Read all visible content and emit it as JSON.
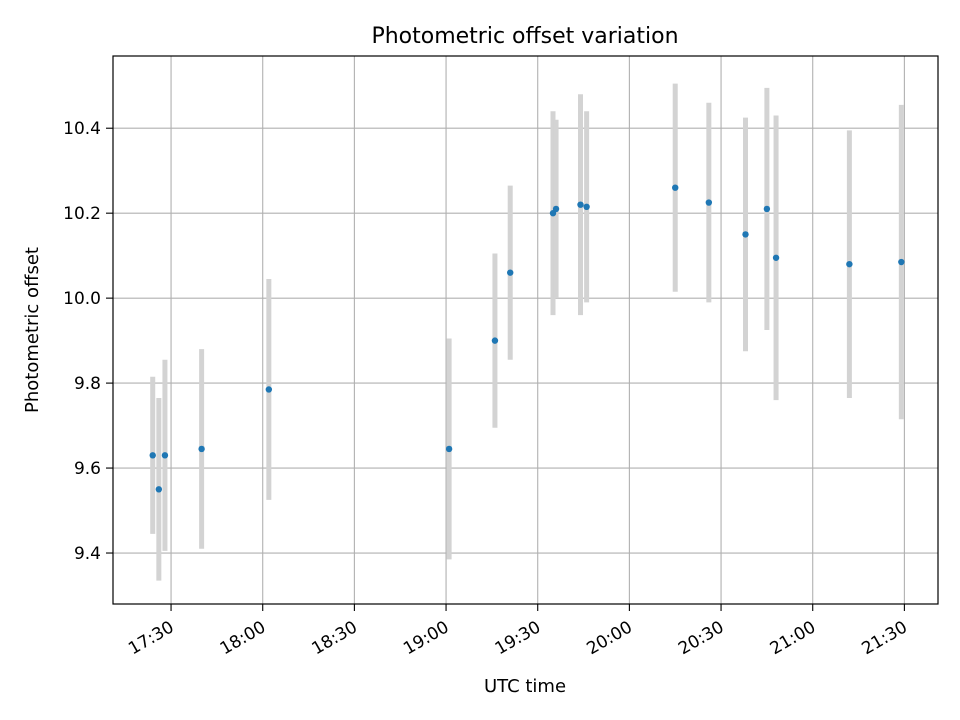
{
  "chart_data": {
    "type": "scatter",
    "title": "Photometric offset variation",
    "xlabel": "UTC time",
    "ylabel": "Photometric offset",
    "x_ticks": [
      "17:30",
      "18:00",
      "18:30",
      "19:00",
      "19:30",
      "20:00",
      "20:30",
      "21:00",
      "21:30"
    ],
    "y_ticks": [
      "9.4",
      "9.6",
      "9.8",
      "10.0",
      "10.2",
      "10.4"
    ],
    "xlim": [
      "17:11",
      "21:41"
    ],
    "ylim": [
      9.28,
      10.57
    ],
    "grid": true,
    "colors": {
      "point": "#1f77b4",
      "errorbar": "#d3d3d3",
      "grid": "#b0b0b0"
    },
    "points": [
      {
        "t": "17:24",
        "y": 9.63,
        "err": 0.185
      },
      {
        "t": "17:26",
        "y": 9.55,
        "err": 0.215
      },
      {
        "t": "17:28",
        "y": 9.63,
        "err": 0.225
      },
      {
        "t": "17:40",
        "y": 9.645,
        "err": 0.235
      },
      {
        "t": "18:02",
        "y": 9.785,
        "err": 0.26
      },
      {
        "t": "19:01",
        "y": 9.645,
        "err": 0.26
      },
      {
        "t": "19:16",
        "y": 9.9,
        "err": 0.205
      },
      {
        "t": "19:21",
        "y": 10.06,
        "err": 0.205
      },
      {
        "t": "19:35",
        "y": 10.2,
        "err": 0.24
      },
      {
        "t": "19:36",
        "y": 10.21,
        "err": 0.21
      },
      {
        "t": "19:44",
        "y": 10.22,
        "err": 0.26
      },
      {
        "t": "19:46",
        "y": 10.215,
        "err": 0.225
      },
      {
        "t": "20:15",
        "y": 10.26,
        "err": 0.245
      },
      {
        "t": "20:26",
        "y": 10.225,
        "err": 0.235
      },
      {
        "t": "20:38",
        "y": 10.15,
        "err": 0.275
      },
      {
        "t": "20:45",
        "y": 10.21,
        "err": 0.285
      },
      {
        "t": "20:48",
        "y": 10.095,
        "err": 0.335
      },
      {
        "t": "21:12",
        "y": 10.08,
        "err": 0.315
      },
      {
        "t": "21:29",
        "y": 10.085,
        "err": 0.37
      }
    ]
  }
}
